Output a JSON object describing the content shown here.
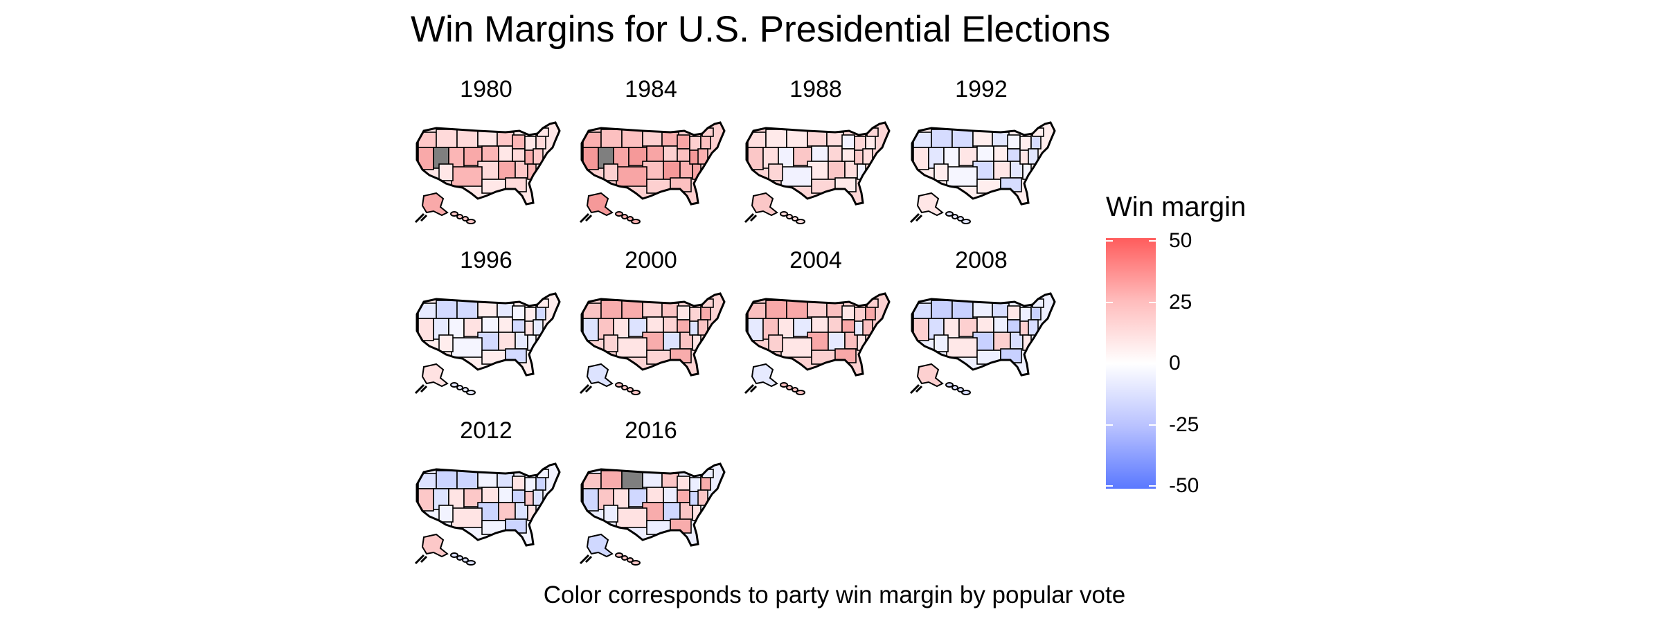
{
  "chart_data": {
    "type": "choropleth-map-facets",
    "title": "Win Margins for U.S. Presidential Elections",
    "caption": "Color corresponds to party win margin by popular vote",
    "panels": [
      {
        "year": "1980",
        "palette": [
          "#ffc8c8",
          "#f9a9a9",
          "#ffdada",
          "#fbb6b6",
          "#ffe7e7"
        ],
        "gray": "utah"
      },
      {
        "year": "1984",
        "palette": [
          "#fbb0b0",
          "#f59999",
          "#fcc0c0",
          "#f8a5a5",
          "#fdd0d0"
        ],
        "gray": "utah"
      },
      {
        "year": "1988",
        "palette": [
          "#ffdede",
          "#fbc7c7",
          "#ffeaea",
          "#f2f2ff",
          "#fdd6d6"
        ],
        "gray": ""
      },
      {
        "year": "1992",
        "palette": [
          "#e3e7ff",
          "#ffe6e6",
          "#d6dcff",
          "#f6f6ff",
          "#ffeeee"
        ],
        "gray": ""
      },
      {
        "year": "1996",
        "palette": [
          "#e6eaff",
          "#ffe2e2",
          "#d3daff",
          "#f5f5ff",
          "#ffeded"
        ],
        "gray": ""
      },
      {
        "year": "2000",
        "palette": [
          "#fbc4c4",
          "#dde3ff",
          "#f8acac",
          "#ffe4e4",
          "#fdd4d4"
        ],
        "gray": ""
      },
      {
        "year": "2004",
        "palette": [
          "#fbc0c0",
          "#e6eaff",
          "#f8a8a8",
          "#ffe6e6",
          "#fcd0d0"
        ],
        "gray": ""
      },
      {
        "year": "2008",
        "palette": [
          "#d8deff",
          "#fdd0d0",
          "#c8d1ff",
          "#ffe8e8",
          "#eef0ff"
        ],
        "gray": ""
      },
      {
        "year": "2012",
        "palette": [
          "#dde3ff",
          "#fcc8c8",
          "#ccd5ff",
          "#ffe4e4",
          "#f2f3ff"
        ],
        "gray": ""
      },
      {
        "year": "2016",
        "palette": [
          "#fbc6c6",
          "#d0d8ff",
          "#f8acac",
          "#ffe2e2",
          "#eceeff"
        ],
        "gray": "wyoming"
      }
    ],
    "legend": {
      "title": "Win margin",
      "range": [
        -50,
        50
      ],
      "ticks": [
        "50",
        "25",
        "0",
        "-25",
        "-50"
      ],
      "colors": {
        "high": "#ff5c5c",
        "mid": "#ffffff",
        "low": "#5a78ff"
      }
    },
    "missing_color": "#7f7f7f"
  }
}
